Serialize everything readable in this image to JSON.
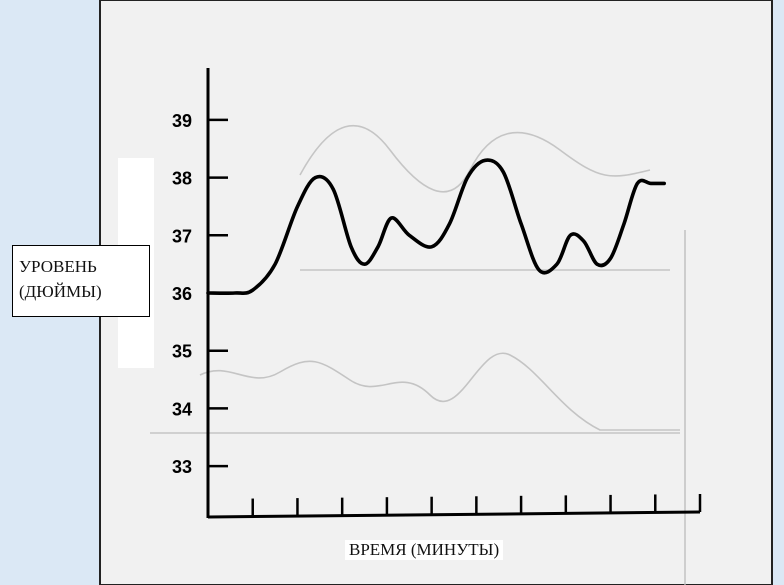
{
  "chart_data": {
    "type": "line",
    "title": "",
    "xlabel": "ВРЕМЯ (МИНУТЫ)",
    "ylabel_lines": [
      "УРОВЕНЬ",
      "(ДЮЙМЫ)"
    ],
    "yticks": [
      "39",
      "38",
      "37",
      "36",
      "35",
      "34",
      "33"
    ],
    "ylim": [
      32.1,
      39.9
    ],
    "xlim": [
      0,
      11
    ],
    "x_tick_count": 11,
    "grid": false,
    "series": [
      {
        "x": [
          0,
          0.6,
          1.0,
          1.5,
          2.0,
          2.4,
          2.8,
          3.2,
          3.5,
          3.8,
          4.1,
          4.5,
          5.0,
          5.4,
          5.8,
          6.2,
          6.6,
          7.0,
          7.4,
          7.8,
          8.1,
          8.4,
          8.7,
          9.0,
          9.3,
          9.6,
          9.9,
          10.2
        ],
        "y": [
          36.0,
          36.0,
          36.05,
          36.5,
          37.5,
          38.0,
          37.8,
          36.8,
          36.5,
          36.8,
          37.3,
          37.0,
          36.8,
          37.2,
          38.0,
          38.3,
          38.1,
          37.2,
          36.4,
          36.5,
          37.0,
          36.9,
          36.5,
          36.6,
          37.2,
          37.9,
          37.9,
          37.9
        ]
      }
    ],
    "line_color": "#000000",
    "background_colors": {
      "page_edge": "#dbe8f5",
      "scan_paper": "#eeeeee",
      "scan_ghost": "#aaaaaa"
    }
  }
}
